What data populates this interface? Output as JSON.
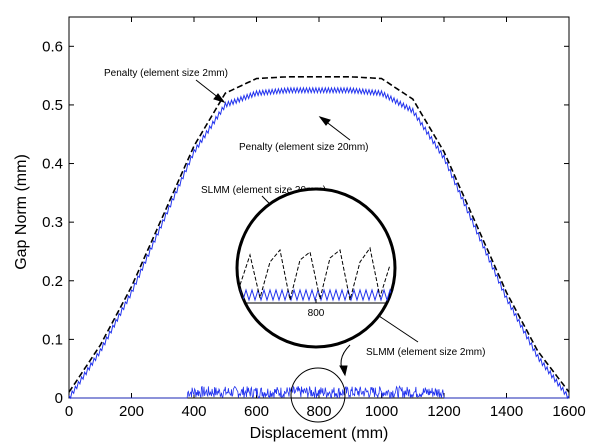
{
  "chart_data": {
    "type": "line",
    "xlabel": "Displacement (mm)",
    "ylabel": "Gap Norm (mm)",
    "xlim": [
      0,
      1600
    ],
    "ylim": [
      0,
      0.65
    ],
    "x_ticks": [
      "0",
      "200",
      "400",
      "600",
      "800",
      "1000",
      "1200",
      "1400",
      "1600"
    ],
    "y_ticks": [
      "0",
      "0.1",
      "0.2",
      "0.3",
      "0.4",
      "0.5",
      "0.6"
    ],
    "grid": false,
    "legend": "none",
    "series": [
      {
        "name": "Penalty (element size 2mm)",
        "style": "dashed",
        "color": "#000000",
        "x": [
          0,
          100,
          200,
          300,
          400,
          500,
          600,
          700,
          800,
          900,
          1000,
          1100,
          1200,
          1300,
          1400,
          1500,
          1600
        ],
        "y": [
          0.01,
          0.09,
          0.19,
          0.31,
          0.43,
          0.52,
          0.545,
          0.548,
          0.548,
          0.548,
          0.545,
          0.51,
          0.42,
          0.3,
          0.18,
          0.08,
          0.01
        ]
      },
      {
        "name": "Penalty (element size 20mm)",
        "style": "solid-oscillating",
        "color": "#2233ee",
        "x": [
          0,
          100,
          200,
          300,
          400,
          500,
          600,
          700,
          800,
          900,
          1000,
          1100,
          1200,
          1300,
          1400,
          1500,
          1600
        ],
        "y": [
          0.0,
          0.08,
          0.18,
          0.3,
          0.42,
          0.5,
          0.52,
          0.525,
          0.525,
          0.525,
          0.52,
          0.49,
          0.41,
          0.29,
          0.17,
          0.07,
          0.0
        ]
      },
      {
        "name": "SLMM (element size 2mm)",
        "style": "noise-near-zero",
        "color": "#2233ee",
        "x": [
          380,
          1200
        ],
        "y": [
          0,
          0.02
        ]
      },
      {
        "name": "SLMM (element size 20mm)",
        "style": "noise-near-zero",
        "color": "#2233ee",
        "x": [
          380,
          1200
        ],
        "y": [
          0,
          0.02
        ]
      }
    ],
    "annotations": [
      "Penalty (element size 2mm)",
      "Penalty (element size 20mm)",
      "SLMM (element size 20mm)",
      "SLMM (element size 2mm)"
    ],
    "inset_tick": "800"
  }
}
